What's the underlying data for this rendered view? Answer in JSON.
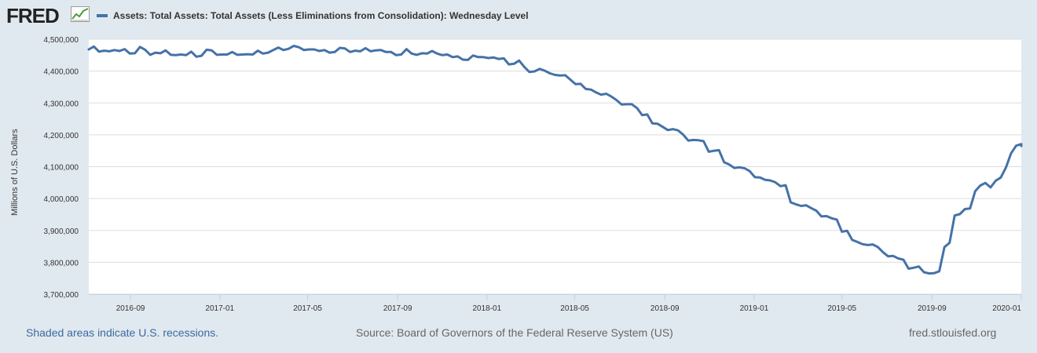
{
  "header": {
    "logo_text": "FRED",
    "logo_icon": "line-graph-icon",
    "legend_label": "Assets: Total Assets: Total Assets (Less Eliminations from Consolidation): Wednesday Level"
  },
  "colors": {
    "series": "#4572a7",
    "background": "#e1e9f0",
    "plot_background": "#ffffff",
    "grid": "#dddddd"
  },
  "footer": {
    "recession_note": "Shaded areas indicate U.S. recessions.",
    "source": "Source: Board of Governors of the Federal Reserve System (US)",
    "site": "fred.stlouisfed.org"
  },
  "chart_data": {
    "type": "line",
    "title": "",
    "xlabel": "",
    "ylabel": "Millions of U.S. Dollars",
    "ylim": [
      3700000,
      4500000
    ],
    "xlim": [
      "2016-07-06",
      "2020-01-01"
    ],
    "grid": true,
    "legend_placement": "top-left",
    "y_ticks": [
      {
        "value": 4500000,
        "label": "4,500,000"
      },
      {
        "value": 4400000,
        "label": "4,400,000"
      },
      {
        "value": 4300000,
        "label": "4,300,000"
      },
      {
        "value": 4200000,
        "label": "4,200,000"
      },
      {
        "value": 4100000,
        "label": "4,100,000"
      },
      {
        "value": 4000000,
        "label": "4,000,000"
      },
      {
        "value": 3900000,
        "label": "3,900,000"
      },
      {
        "value": 3800000,
        "label": "3,800,000"
      },
      {
        "value": 3700000,
        "label": "3,700,000"
      }
    ],
    "x_ticks": [
      {
        "value": "2016-09-01",
        "label": "2016-09"
      },
      {
        "value": "2017-01-01",
        "label": "2017-01"
      },
      {
        "value": "2017-05-01",
        "label": "2017-05"
      },
      {
        "value": "2017-09-01",
        "label": "2017-09"
      },
      {
        "value": "2018-01-01",
        "label": "2018-01"
      },
      {
        "value": "2018-05-01",
        "label": "2018-05"
      },
      {
        "value": "2018-09-01",
        "label": "2018-09"
      },
      {
        "value": "2019-01-01",
        "label": "2019-01"
      },
      {
        "value": "2019-05-01",
        "label": "2019-05"
      },
      {
        "value": "2019-09-01",
        "label": "2019-09"
      },
      {
        "value": "2020-01-01",
        "label": "2020-01"
      }
    ],
    "series": [
      {
        "name": "Assets: Total Assets: Total Assets (Less Eliminations from Consolidation): Wednesday Level",
        "color": "#4572a7",
        "points": [
          [
            "2016-07-06",
            4468000
          ],
          [
            "2016-07-13",
            4477000
          ],
          [
            "2016-07-20",
            4461000
          ],
          [
            "2016-07-27",
            4464000
          ],
          [
            "2016-08-03",
            4462000
          ],
          [
            "2016-08-10",
            4466000
          ],
          [
            "2016-08-17",
            4463000
          ],
          [
            "2016-08-24",
            4469000
          ],
          [
            "2016-08-31",
            4455000
          ],
          [
            "2016-09-07",
            4456000
          ],
          [
            "2016-09-14",
            4476000
          ],
          [
            "2016-09-21",
            4467000
          ],
          [
            "2016-09-28",
            4451000
          ],
          [
            "2016-10-05",
            4458000
          ],
          [
            "2016-10-12",
            4456000
          ],
          [
            "2016-10-19",
            4465000
          ],
          [
            "2016-10-26",
            4451000
          ],
          [
            "2016-11-02",
            4450000
          ],
          [
            "2016-11-09",
            4452000
          ],
          [
            "2016-11-16",
            4450000
          ],
          [
            "2016-11-23",
            4461000
          ],
          [
            "2016-11-30",
            4445000
          ],
          [
            "2016-12-07",
            4448000
          ],
          [
            "2016-12-14",
            4467000
          ],
          [
            "2016-12-21",
            4465000
          ],
          [
            "2016-12-28",
            4451000
          ],
          [
            "2017-01-04",
            4452000
          ],
          [
            "2017-01-11",
            4452000
          ],
          [
            "2017-01-18",
            4460000
          ],
          [
            "2017-01-25",
            4451000
          ],
          [
            "2017-02-01",
            4452000
          ],
          [
            "2017-02-08",
            4453000
          ],
          [
            "2017-02-15",
            4452000
          ],
          [
            "2017-02-22",
            4464000
          ],
          [
            "2017-03-01",
            4455000
          ],
          [
            "2017-03-08",
            4458000
          ],
          [
            "2017-03-15",
            4466000
          ],
          [
            "2017-03-22",
            4474000
          ],
          [
            "2017-03-29",
            4466000
          ],
          [
            "2017-04-05",
            4470000
          ],
          [
            "2017-04-12",
            4479000
          ],
          [
            "2017-04-19",
            4475000
          ],
          [
            "2017-04-26",
            4466000
          ],
          [
            "2017-05-03",
            4468000
          ],
          [
            "2017-05-10",
            4468000
          ],
          [
            "2017-05-17",
            4463000
          ],
          [
            "2017-05-24",
            4466000
          ],
          [
            "2017-05-31",
            4458000
          ],
          [
            "2017-06-07",
            4460000
          ],
          [
            "2017-06-14",
            4473000
          ],
          [
            "2017-06-21",
            4471000
          ],
          [
            "2017-06-28",
            4460000
          ],
          [
            "2017-07-05",
            4464000
          ],
          [
            "2017-07-12",
            4462000
          ],
          [
            "2017-07-19",
            4472000
          ],
          [
            "2017-07-26",
            4462000
          ],
          [
            "2017-08-02",
            4465000
          ],
          [
            "2017-08-09",
            4466000
          ],
          [
            "2017-08-16",
            4460000
          ],
          [
            "2017-08-23",
            4460000
          ],
          [
            "2017-08-30",
            4450000
          ],
          [
            "2017-09-06",
            4452000
          ],
          [
            "2017-09-13",
            4469000
          ],
          [
            "2017-09-20",
            4455000
          ],
          [
            "2017-09-27",
            4451000
          ],
          [
            "2017-10-04",
            4456000
          ],
          [
            "2017-10-11",
            4455000
          ],
          [
            "2017-10-18",
            4463000
          ],
          [
            "2017-10-25",
            4455000
          ],
          [
            "2017-11-01",
            4450000
          ],
          [
            "2017-11-08",
            4452000
          ],
          [
            "2017-11-15",
            4444000
          ],
          [
            "2017-11-22",
            4446000
          ],
          [
            "2017-11-29",
            4436000
          ],
          [
            "2017-12-06",
            4435000
          ],
          [
            "2017-12-13",
            4449000
          ],
          [
            "2017-12-20",
            4444000
          ],
          [
            "2017-12-27",
            4444000
          ],
          [
            "2018-01-03",
            4441000
          ],
          [
            "2018-01-10",
            4443000
          ],
          [
            "2018-01-17",
            4438000
          ],
          [
            "2018-01-24",
            4440000
          ],
          [
            "2018-01-31",
            4421000
          ],
          [
            "2018-02-07",
            4423000
          ],
          [
            "2018-02-14",
            4433000
          ],
          [
            "2018-02-21",
            4413000
          ],
          [
            "2018-02-28",
            4397000
          ],
          [
            "2018-03-07",
            4399000
          ],
          [
            "2018-03-14",
            4407000
          ],
          [
            "2018-03-21",
            4401000
          ],
          [
            "2018-03-28",
            4393000
          ],
          [
            "2018-04-04",
            4388000
          ],
          [
            "2018-04-11",
            4386000
          ],
          [
            "2018-04-18",
            4387000
          ],
          [
            "2018-04-25",
            4373000
          ],
          [
            "2018-05-02",
            4359000
          ],
          [
            "2018-05-09",
            4360000
          ],
          [
            "2018-05-16",
            4344000
          ],
          [
            "2018-05-23",
            4342000
          ],
          [
            "2018-05-30",
            4333000
          ],
          [
            "2018-06-06",
            4326000
          ],
          [
            "2018-06-13",
            4329000
          ],
          [
            "2018-06-20",
            4320000
          ],
          [
            "2018-06-27",
            4309000
          ],
          [
            "2018-07-04",
            4295000
          ],
          [
            "2018-07-11",
            4296000
          ],
          [
            "2018-07-18",
            4296000
          ],
          [
            "2018-07-25",
            4284000
          ],
          [
            "2018-08-01",
            4262000
          ],
          [
            "2018-08-08",
            4264000
          ],
          [
            "2018-08-15",
            4236000
          ],
          [
            "2018-08-22",
            4235000
          ],
          [
            "2018-08-29",
            4225000
          ],
          [
            "2018-09-05",
            4215000
          ],
          [
            "2018-09-12",
            4218000
          ],
          [
            "2018-09-19",
            4214000
          ],
          [
            "2018-09-26",
            4201000
          ],
          [
            "2018-10-03",
            4182000
          ],
          [
            "2018-10-10",
            4184000
          ],
          [
            "2018-10-17",
            4183000
          ],
          [
            "2018-10-24",
            4180000
          ],
          [
            "2018-10-31",
            4147000
          ],
          [
            "2018-11-07",
            4150000
          ],
          [
            "2018-11-14",
            4152000
          ],
          [
            "2018-11-21",
            4114000
          ],
          [
            "2018-11-28",
            4107000
          ],
          [
            "2018-12-05",
            4096000
          ],
          [
            "2018-12-12",
            4098000
          ],
          [
            "2018-12-19",
            4095000
          ],
          [
            "2018-12-26",
            4086000
          ],
          [
            "2019-01-02",
            4067000
          ],
          [
            "2019-01-09",
            4066000
          ],
          [
            "2019-01-16",
            4059000
          ],
          [
            "2019-01-23",
            4057000
          ],
          [
            "2019-01-30",
            4051000
          ],
          [
            "2019-02-06",
            4039000
          ],
          [
            "2019-02-13",
            4042000
          ],
          [
            "2019-02-20",
            3988000
          ],
          [
            "2019-02-27",
            3982000
          ],
          [
            "2019-03-06",
            3977000
          ],
          [
            "2019-03-13",
            3979000
          ],
          [
            "2019-03-20",
            3970000
          ],
          [
            "2019-03-27",
            3962000
          ],
          [
            "2019-04-03",
            3944000
          ],
          [
            "2019-04-10",
            3945000
          ],
          [
            "2019-04-17",
            3938000
          ],
          [
            "2019-04-24",
            3934000
          ],
          [
            "2019-05-01",
            3896000
          ],
          [
            "2019-05-08",
            3899000
          ],
          [
            "2019-05-15",
            3870000
          ],
          [
            "2019-05-22",
            3864000
          ],
          [
            "2019-05-29",
            3857000
          ],
          [
            "2019-06-05",
            3854000
          ],
          [
            "2019-06-12",
            3856000
          ],
          [
            "2019-06-19",
            3848000
          ],
          [
            "2019-06-26",
            3832000
          ],
          [
            "2019-07-03",
            3819000
          ],
          [
            "2019-07-10",
            3820000
          ],
          [
            "2019-07-17",
            3812000
          ],
          [
            "2019-07-24",
            3808000
          ],
          [
            "2019-07-31",
            3780000
          ],
          [
            "2019-08-07",
            3783000
          ],
          [
            "2019-08-14",
            3787000
          ],
          [
            "2019-08-21",
            3769000
          ],
          [
            "2019-08-28",
            3765000
          ],
          [
            "2019-09-04",
            3766000
          ],
          [
            "2019-09-11",
            3772000
          ],
          [
            "2019-09-18",
            3848000
          ],
          [
            "2019-09-25",
            3861000
          ],
          [
            "2019-10-02",
            3947000
          ],
          [
            "2019-10-09",
            3951000
          ],
          [
            "2019-10-16",
            3967000
          ],
          [
            "2019-10-23",
            3969000
          ],
          [
            "2019-10-30",
            4023000
          ],
          [
            "2019-11-06",
            4041000
          ],
          [
            "2019-11-13",
            4049000
          ],
          [
            "2019-11-20",
            4035000
          ],
          [
            "2019-11-27",
            4056000
          ],
          [
            "2019-12-04",
            4066000
          ],
          [
            "2019-12-11",
            4097000
          ],
          [
            "2019-12-18",
            4142000
          ],
          [
            "2019-12-25",
            4166000
          ],
          [
            "2020-01-01",
            4171000
          ],
          [
            "2020-01-01",
            4165000
          ]
        ]
      }
    ]
  }
}
